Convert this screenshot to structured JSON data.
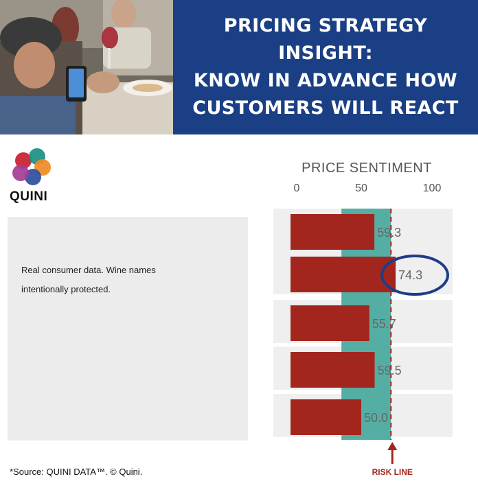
{
  "banner": {
    "title": "PRICING STRATEGY INSIGHT:\nKNOW IN ADVANCE HOW\nCUSTOMERS WILL REACT"
  },
  "logo": {
    "name": "QUINI",
    "colors": [
      "#c8202f",
      "#1a8f84",
      "#f08a24",
      "#2b4f9e",
      "#a43c95"
    ]
  },
  "note": {
    "line1": "Real consumer data. Wine names",
    "line2": "intentionally protected."
  },
  "source": "*Source: QUINI DATA™. © Quini.",
  "chart_data": {
    "type": "bar",
    "orientation": "horizontal",
    "title": "PRICE SENTIMENT",
    "categories": [
      "",
      "",
      "",
      "",
      ""
    ],
    "values": [
      59.3,
      74.3,
      55.7,
      59.5,
      50.0
    ],
    "value_labels": [
      "59.3",
      "74.3",
      "55.7",
      "59.5",
      "50.0"
    ],
    "xlim": [
      0,
      100
    ],
    "xticks": [
      "0",
      "50",
      "100"
    ],
    "highlighted_index": 1,
    "band_range": [
      36,
      71
    ],
    "risk_line": 71,
    "risk_label": "RISK LINE",
    "colors": {
      "bar": "#a3261e",
      "band": "#55aea4",
      "row": "#efefef",
      "risk": "#a3261e",
      "highlight": "#1d3d86",
      "label": "#666666"
    }
  }
}
